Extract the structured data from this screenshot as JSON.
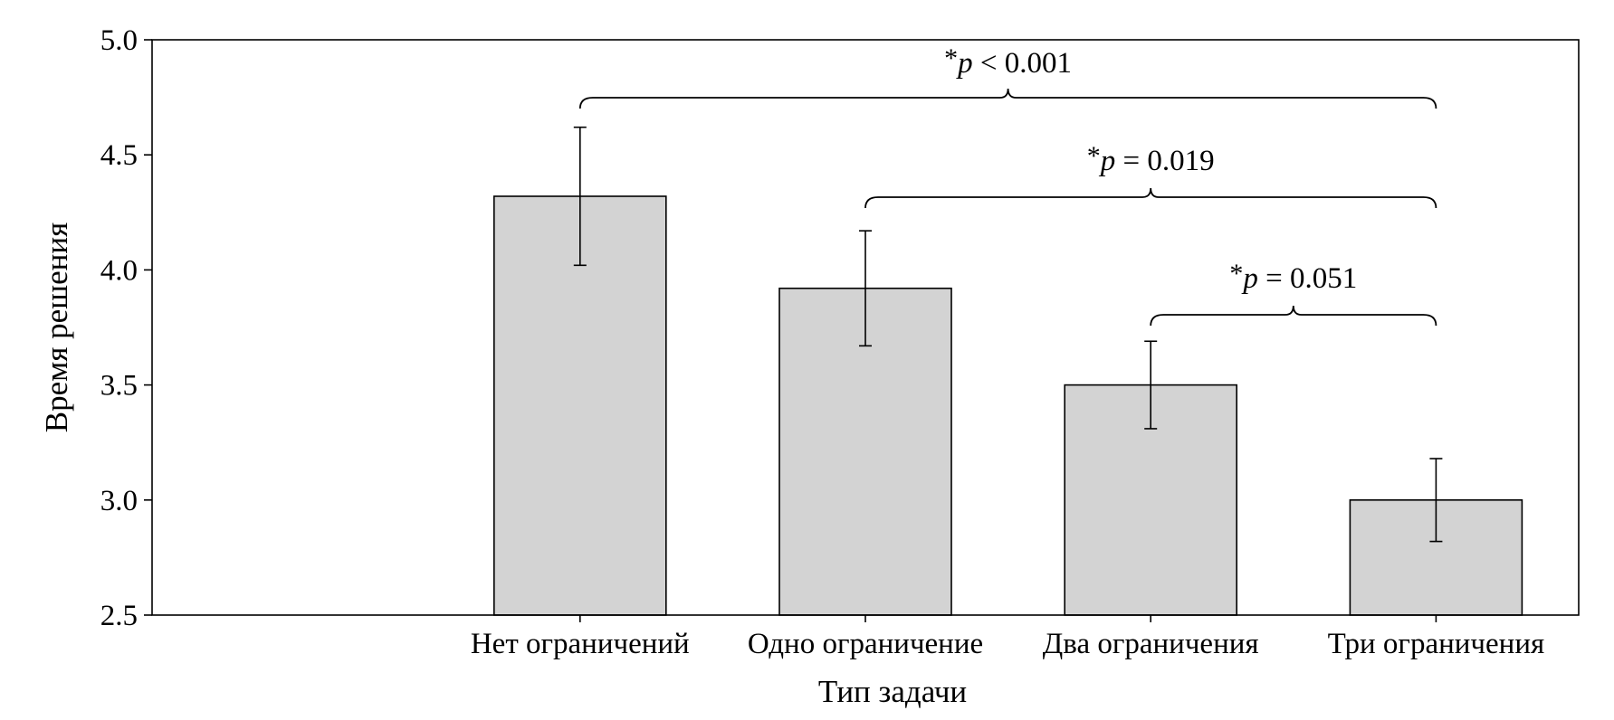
{
  "chart_data": {
    "type": "bar",
    "categories": [
      "Нет ограничений",
      "Одно ограничение",
      "Два ограничения",
      "Три ограничения"
    ],
    "values": [
      4.32,
      3.92,
      3.5,
      3.0
    ],
    "errors": [
      {
        "low": 4.02,
        "high": 4.62
      },
      {
        "low": 3.67,
        "high": 4.17
      },
      {
        "low": 3.31,
        "high": 3.69
      },
      {
        "low": 2.82,
        "high": 3.18
      }
    ],
    "xlabel": "Тип задачи",
    "ylabel": "Время решения",
    "ylim": [
      2.5,
      5.0
    ],
    "yticks": [
      "2.5",
      "3.0",
      "3.5",
      "4.0",
      "4.5",
      "5.0"
    ],
    "grid": false,
    "bar_color": "#d3d3d3",
    "annotations": [
      {
        "from": 0,
        "to": 3,
        "star": "*",
        "p": "p",
        "relation": " < 0.001"
      },
      {
        "from": 1,
        "to": 3,
        "star": "*",
        "p": "p",
        "relation": " = 0.019"
      },
      {
        "from": 2,
        "to": 3,
        "star": "*",
        "p": "p",
        "relation": " = 0.051"
      }
    ]
  }
}
